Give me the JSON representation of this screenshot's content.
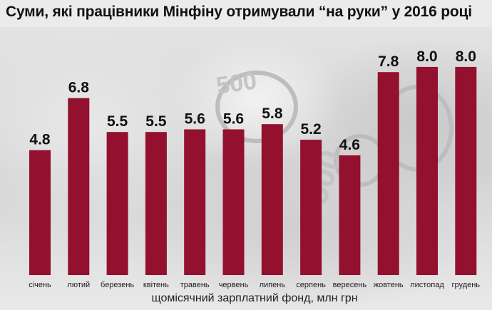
{
  "chart_data": {
    "type": "bar",
    "title": "Суми, які працівники Мінфіну отримували “на руки” у 2016 році",
    "xlabel": "щомісячний зарплатний фонд, млн грн",
    "ylabel": "",
    "ylim": [
      0,
      8.6
    ],
    "grid": false,
    "legend": "none",
    "categories": [
      "січень",
      "лютий",
      "березень",
      "квітень",
      "травень",
      "червень",
      "липень",
      "серпень",
      "вересень",
      "жовтень",
      "листопад",
      "грудень"
    ],
    "values": [
      4.8,
      6.8,
      5.5,
      5.5,
      5.6,
      5.6,
      5.8,
      5.2,
      4.6,
      7.8,
      8.0,
      8.0
    ],
    "value_labels": [
      "4.8",
      "6.8",
      "5.5",
      "5.5",
      "5.6",
      "5.6",
      "5.8",
      "5.2",
      "4.6",
      "7.8",
      "8.0",
      "8.0"
    ],
    "colors": {
      "bar": "#93102f",
      "text": "#111111"
    }
  }
}
